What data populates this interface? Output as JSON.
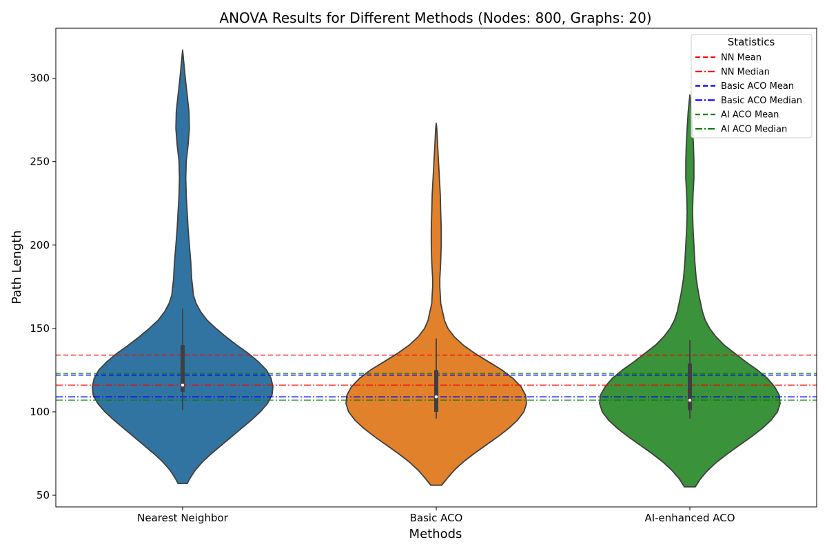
{
  "chart_data": {
    "type": "violin",
    "title": "ANOVA Results for Different Methods (Nodes: 800, Graphs: 20)",
    "xlabel": "Methods",
    "ylabel": "Path Length",
    "ylim": [
      43,
      330
    ],
    "yticks": [
      50,
      100,
      150,
      200,
      250,
      300
    ],
    "categories": [
      "Nearest Neighbor",
      "Basic ACO",
      "AI-enhanced ACO"
    ],
    "colors": [
      "#3274a1",
      "#e1812c",
      "#3a923a"
    ],
    "violins": [
      {
        "category": "Nearest Neighbor",
        "min": 57,
        "max": 317,
        "box": {
          "q1": 112,
          "median": 116,
          "q3": 140,
          "whisker_low": 101,
          "whisker_high": 162
        },
        "density": [
          [
            57,
            0.05
          ],
          [
            60,
            0.08
          ],
          [
            65,
            0.14
          ],
          [
            70,
            0.22
          ],
          [
            75,
            0.32
          ],
          [
            80,
            0.43
          ],
          [
            85,
            0.54
          ],
          [
            90,
            0.65
          ],
          [
            95,
            0.76
          ],
          [
            100,
            0.86
          ],
          [
            105,
            0.94
          ],
          [
            110,
            0.99
          ],
          [
            115,
            1.0
          ],
          [
            120,
            0.98
          ],
          [
            125,
            0.93
          ],
          [
            130,
            0.84
          ],
          [
            135,
            0.73
          ],
          [
            140,
            0.6
          ],
          [
            145,
            0.48
          ],
          [
            150,
            0.37
          ],
          [
            155,
            0.27
          ],
          [
            160,
            0.2
          ],
          [
            165,
            0.15
          ],
          [
            170,
            0.12
          ],
          [
            175,
            0.11
          ],
          [
            180,
            0.1
          ],
          [
            190,
            0.09
          ],
          [
            200,
            0.075
          ],
          [
            210,
            0.06
          ],
          [
            220,
            0.05
          ],
          [
            230,
            0.04
          ],
          [
            240,
            0.035
          ],
          [
            250,
            0.04
          ],
          [
            260,
            0.06
          ],
          [
            270,
            0.075
          ],
          [
            280,
            0.07
          ],
          [
            290,
            0.05
          ],
          [
            300,
            0.03
          ],
          [
            310,
            0.012
          ],
          [
            317,
            0.0
          ]
        ]
      },
      {
        "category": "Basic ACO",
        "min": 56,
        "max": 273,
        "box": {
          "q1": 100,
          "median": 109,
          "q3": 125,
          "whisker_low": 96,
          "whisker_high": 144
        },
        "density": [
          [
            56,
            0.06
          ],
          [
            60,
            0.12
          ],
          [
            65,
            0.2
          ],
          [
            70,
            0.3
          ],
          [
            75,
            0.42
          ],
          [
            80,
            0.55
          ],
          [
            85,
            0.68
          ],
          [
            90,
            0.8
          ],
          [
            95,
            0.9
          ],
          [
            100,
            0.97
          ],
          [
            105,
            1.0
          ],
          [
            110,
            0.99
          ],
          [
            115,
            0.94
          ],
          [
            120,
            0.85
          ],
          [
            125,
            0.73
          ],
          [
            130,
            0.58
          ],
          [
            135,
            0.43
          ],
          [
            140,
            0.3
          ],
          [
            145,
            0.2
          ],
          [
            150,
            0.13
          ],
          [
            155,
            0.09
          ],
          [
            160,
            0.07
          ],
          [
            165,
            0.05
          ],
          [
            170,
            0.045
          ],
          [
            175,
            0.04
          ],
          [
            180,
            0.04
          ],
          [
            185,
            0.045
          ],
          [
            190,
            0.05
          ],
          [
            200,
            0.055
          ],
          [
            210,
            0.055
          ],
          [
            220,
            0.05
          ],
          [
            230,
            0.045
          ],
          [
            240,
            0.035
          ],
          [
            250,
            0.025
          ],
          [
            260,
            0.015
          ],
          [
            270,
            0.006
          ],
          [
            273,
            0.0
          ]
        ]
      },
      {
        "category": "AI-enhanced ACO",
        "min": 55,
        "max": 290,
        "box": {
          "q1": 101,
          "median": 107,
          "q3": 129,
          "whisker_low": 96,
          "whisker_high": 143
        },
        "density": [
          [
            55,
            0.06
          ],
          [
            60,
            0.12
          ],
          [
            65,
            0.2
          ],
          [
            70,
            0.3
          ],
          [
            75,
            0.42
          ],
          [
            80,
            0.55
          ],
          [
            85,
            0.68
          ],
          [
            90,
            0.8
          ],
          [
            95,
            0.9
          ],
          [
            100,
            0.97
          ],
          [
            105,
            1.0
          ],
          [
            110,
            0.99
          ],
          [
            115,
            0.94
          ],
          [
            120,
            0.86
          ],
          [
            125,
            0.75
          ],
          [
            130,
            0.62
          ],
          [
            135,
            0.5
          ],
          [
            140,
            0.38
          ],
          [
            145,
            0.29
          ],
          [
            150,
            0.22
          ],
          [
            155,
            0.17
          ],
          [
            160,
            0.14
          ],
          [
            165,
            0.12
          ],
          [
            170,
            0.1
          ],
          [
            175,
            0.085
          ],
          [
            180,
            0.07
          ],
          [
            190,
            0.055
          ],
          [
            200,
            0.045
          ],
          [
            210,
            0.035
          ],
          [
            220,
            0.03
          ],
          [
            230,
            0.035
          ],
          [
            240,
            0.045
          ],
          [
            250,
            0.045
          ],
          [
            260,
            0.04
          ],
          [
            270,
            0.03
          ],
          [
            280,
            0.018
          ],
          [
            290,
            0.0
          ]
        ]
      }
    ],
    "reference_lines": [
      {
        "name": "NN Mean",
        "value": 134,
        "color": "#ff0000",
        "style": "dashed"
      },
      {
        "name": "NN Median",
        "value": 116,
        "color": "#ff0000",
        "style": "dashdot"
      },
      {
        "name": "Basic ACO Mean",
        "value": 122,
        "color": "#0000ff",
        "style": "dashed"
      },
      {
        "name": "Basic ACO Median",
        "value": 109,
        "color": "#0000ff",
        "style": "dashdot"
      },
      {
        "name": "AI ACO Mean",
        "value": 123,
        "color": "#008000",
        "style": "dashed"
      },
      {
        "name": "AI ACO Median",
        "value": 107,
        "color": "#008000",
        "style": "dashdot"
      }
    ],
    "legend": {
      "title": "Statistics",
      "placement": "top-right"
    },
    "grid": false
  }
}
